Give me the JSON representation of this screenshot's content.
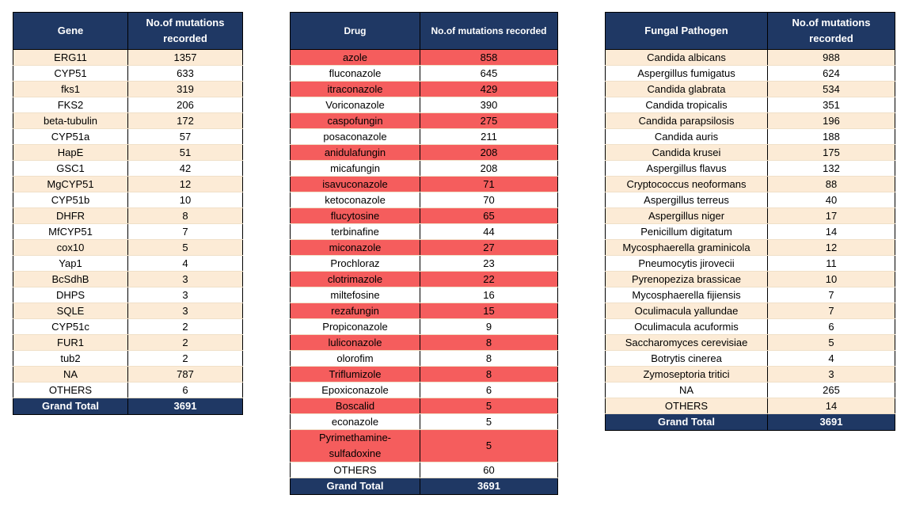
{
  "gene_table": {
    "headers": [
      "Gene",
      "No.of mutations recorded"
    ],
    "rows": [
      [
        "ERG11",
        "1357"
      ],
      [
        "CYP51",
        "633"
      ],
      [
        "fks1",
        "319"
      ],
      [
        "FKS2",
        "206"
      ],
      [
        "beta-tubulin",
        "172"
      ],
      [
        "CYP51a",
        "57"
      ],
      [
        "HapE",
        "51"
      ],
      [
        "GSC1",
        "42"
      ],
      [
        "MgCYP51",
        "12"
      ],
      [
        "CYP51b",
        "10"
      ],
      [
        "DHFR",
        "8"
      ],
      [
        "MfCYP51",
        "7"
      ],
      [
        "cox10",
        "5"
      ],
      [
        "Yap1",
        "4"
      ],
      [
        "BcSdhB",
        "3"
      ],
      [
        "DHPS",
        "3"
      ],
      [
        "SQLE",
        "3"
      ],
      [
        "CYP51c",
        "2"
      ],
      [
        "FUR1",
        "2"
      ],
      [
        "tub2",
        "2"
      ],
      [
        "NA",
        "787"
      ],
      [
        "OTHERS",
        "6"
      ]
    ],
    "total": [
      "Grand Total",
      "3691"
    ]
  },
  "drug_table": {
    "headers": [
      "Drug",
      "No.of mutations recorded"
    ],
    "rows": [
      [
        "azole",
        "858"
      ],
      [
        "fluconazole",
        "645"
      ],
      [
        "itraconazole",
        "429"
      ],
      [
        "Voriconazole",
        "390"
      ],
      [
        "caspofungin",
        "275"
      ],
      [
        "posaconazole",
        "211"
      ],
      [
        "anidulafungin",
        "208"
      ],
      [
        "micafungin",
        "208"
      ],
      [
        "isavuconazole",
        "71"
      ],
      [
        "ketoconazole",
        "70"
      ],
      [
        "flucytosine",
        "65"
      ],
      [
        "terbinafine",
        "44"
      ],
      [
        "miconazole",
        "27"
      ],
      [
        "Prochloraz",
        "23"
      ],
      [
        "clotrimazole",
        "22"
      ],
      [
        "miltefosine",
        "16"
      ],
      [
        "rezafungin",
        "15"
      ],
      [
        "Propiconazole",
        "9"
      ],
      [
        "luliconazole",
        "8"
      ],
      [
        "olorofim",
        "8"
      ],
      [
        "Triflumizole",
        "8"
      ],
      [
        "Epoxiconazole",
        "6"
      ],
      [
        "Boscalid",
        "5"
      ],
      [
        "econazole",
        "5"
      ],
      [
        "Pyrimethamine-sulfadoxine",
        "5"
      ],
      [
        "OTHERS",
        "60"
      ]
    ],
    "highlight_color": "#f55d5d",
    "total": [
      "Grand Total",
      "3691"
    ]
  },
  "pathogen_table": {
    "headers": [
      "Fungal Pathogen",
      "No.of mutations recorded"
    ],
    "rows": [
      [
        "Candida albicans",
        "988"
      ],
      [
        "Aspergillus fumigatus",
        "624"
      ],
      [
        "Candida glabrata",
        "534"
      ],
      [
        "Candida tropicalis",
        "351"
      ],
      [
        "Candida parapsilosis",
        "196"
      ],
      [
        "Candida auris",
        "188"
      ],
      [
        "Candida krusei",
        "175"
      ],
      [
        "Aspergillus flavus",
        "132"
      ],
      [
        "Cryptococcus neoformans",
        "88"
      ],
      [
        "Aspergillus terreus",
        "40"
      ],
      [
        "Aspergillus niger",
        "17"
      ],
      [
        "Penicillum digitatum",
        "14"
      ],
      [
        "Mycosphaerella graminicola",
        "12"
      ],
      [
        "Pneumocytis jirovecii",
        "11"
      ],
      [
        "Pyrenopeziza brassicae",
        "10"
      ],
      [
        "Mycosphaerella fijiensis",
        "7"
      ],
      [
        "Oculimacula yallundae",
        "7"
      ],
      [
        "Oculimacula acuformis",
        "6"
      ],
      [
        "Saccharomyces cerevisiae",
        "5"
      ],
      [
        "Botrytis cinerea",
        "4"
      ],
      [
        "Zymoseptoria tritici",
        "3"
      ],
      [
        "NA",
        "265"
      ],
      [
        "OTHERS",
        "14"
      ]
    ],
    "total": [
      "Grand Total",
      "3691"
    ]
  },
  "colors": {
    "header_bg": "#1f3864",
    "band_odd": "#fcebd6",
    "band_even": "#ffffff",
    "highlight_red": "#f55d5d"
  }
}
